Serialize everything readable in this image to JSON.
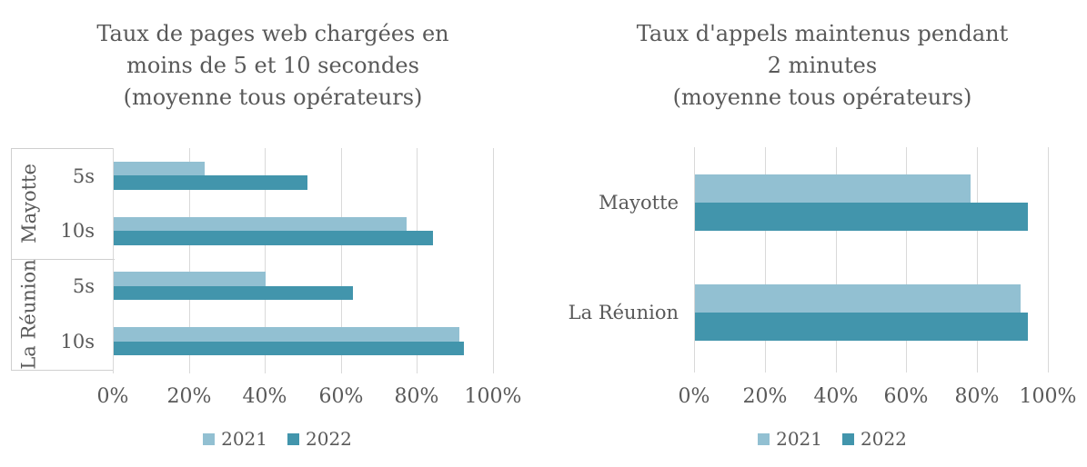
{
  "colors": {
    "series_2021": "#92C0D2",
    "series_2022": "#4295AC",
    "text": "#595959",
    "gridline": "#D9D9D9",
    "axis_line": "#CFCFCF"
  },
  "chart_data": [
    {
      "type": "bar",
      "orientation": "horizontal",
      "title_lines": [
        "Taux de pages web chargées en",
        "moins de 5 et 10 secondes",
        "(moyenne tous opérateurs)"
      ],
      "x_ticks": [
        "0%",
        "20%",
        "40%",
        "60%",
        "80%",
        "100%"
      ],
      "xlim": [
        0,
        100
      ],
      "grid": true,
      "legend_position": "bottom",
      "legend": [
        {
          "label": "2021"
        },
        {
          "label": "2022"
        }
      ],
      "groups": [
        {
          "label": "Mayotte",
          "rows": [
            {
              "label": "5s",
              "values": {
                "2021": 24,
                "2022": 51
              }
            },
            {
              "label": "10s",
              "values": {
                "2021": 77,
                "2022": 84
              }
            }
          ]
        },
        {
          "label": "La Réunion",
          "rows": [
            {
              "label": "5s",
              "values": {
                "2021": 40,
                "2022": 63
              }
            },
            {
              "label": "10s",
              "values": {
                "2021": 91,
                "2022": 92
              }
            }
          ]
        }
      ]
    },
    {
      "type": "bar",
      "orientation": "horizontal",
      "title_lines": [
        "Taux d'appels maintenus pendant",
        "2 minutes",
        "(moyenne tous opérateurs)"
      ],
      "x_ticks": [
        "0%",
        "20%",
        "40%",
        "60%",
        "80%",
        "100%"
      ],
      "xlim": [
        0,
        100
      ],
      "grid": true,
      "legend_position": "bottom",
      "legend": [
        {
          "label": "2021"
        },
        {
          "label": "2022"
        }
      ],
      "groups": [
        {
          "label": "Mayotte",
          "rows": [
            {
              "label": "",
              "values": {
                "2021": 78,
                "2022": 94
              }
            }
          ]
        },
        {
          "label": "La Réunion",
          "rows": [
            {
              "label": "",
              "values": {
                "2021": 92,
                "2022": 94
              }
            }
          ]
        }
      ]
    }
  ]
}
